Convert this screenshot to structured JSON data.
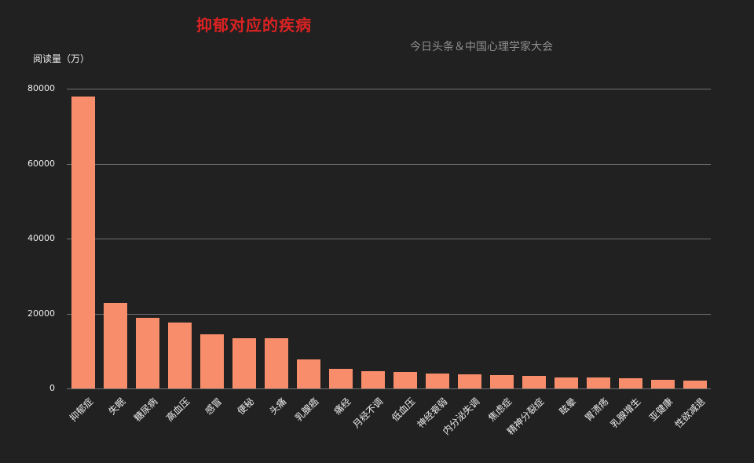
{
  "chart_data": {
    "type": "bar",
    "title": "抑郁对应的疾病",
    "subtitle": "今日头条＆中国心理学家大会",
    "ylabel": "阅读量（万）",
    "xlabel": "",
    "categories": [
      "抑郁症",
      "失眠",
      "糖尿病",
      "高血压",
      "感冒",
      "便秘",
      "头痛",
      "乳腺癌",
      "痛经",
      "月经不调",
      "低血压",
      "神经衰弱",
      "内分泌失调",
      "焦虑症",
      "精神分裂症",
      "眩晕",
      "胃溃疡",
      "乳腺增生",
      "亚健康",
      "性欲减退"
    ],
    "values": [
      78000,
      22800,
      18800,
      17600,
      14400,
      13400,
      13400,
      7700,
      5200,
      4700,
      4300,
      4000,
      3800,
      3500,
      3400,
      3000,
      3000,
      2800,
      2400,
      2000
    ],
    "ylim": [
      0,
      80000
    ],
    "yticks": [
      0,
      20000,
      40000,
      60000,
      80000
    ],
    "grid": true,
    "legend": "none",
    "colors": {
      "background": "#212121",
      "bar": "#f78d6b",
      "gridline": "#707070",
      "title": "#dd2222",
      "subtitle": "#8e8e8e",
      "text": "#eeeeee"
    }
  }
}
